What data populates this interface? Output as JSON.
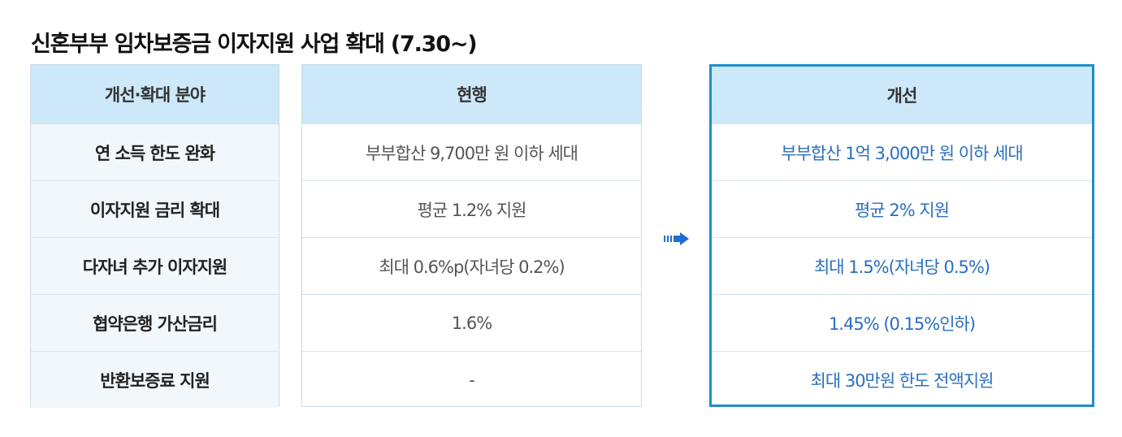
{
  "title": "신혼부부 임차보증금 이자지원 사업 확대 (7.30~)",
  "columns": {
    "category": {
      "header": "개선·확대 분야",
      "rows": [
        "연 소득 한도 완화",
        "이자지원 금리 확대",
        "다자녀 추가 이자지원",
        "협약은행 가산금리",
        "반환보증료 지원"
      ]
    },
    "current": {
      "header": "현행",
      "rows": [
        "부부합산 9,700만 원 이하 세대",
        "평균 1.2% 지원",
        "최대 0.6%p(자녀당 0.2%)",
        "1.6%",
        "-"
      ]
    },
    "improved": {
      "header": "개선",
      "rows": [
        "부부합산 1억 3,000만 원 이하 세대",
        "평균 2% 지원",
        "최대 1.5%(자녀당 0.5%)",
        "1.45% (0.15%인하)",
        "최대 30만원 한도 전액지원"
      ]
    }
  },
  "arrow_icon": "right-arrow-icon",
  "colors": {
    "header_bg": "#cde8f8",
    "accent_border": "#1e8fc6",
    "improved_text": "#2a6fbf",
    "arrow": "#1f6fd0"
  }
}
